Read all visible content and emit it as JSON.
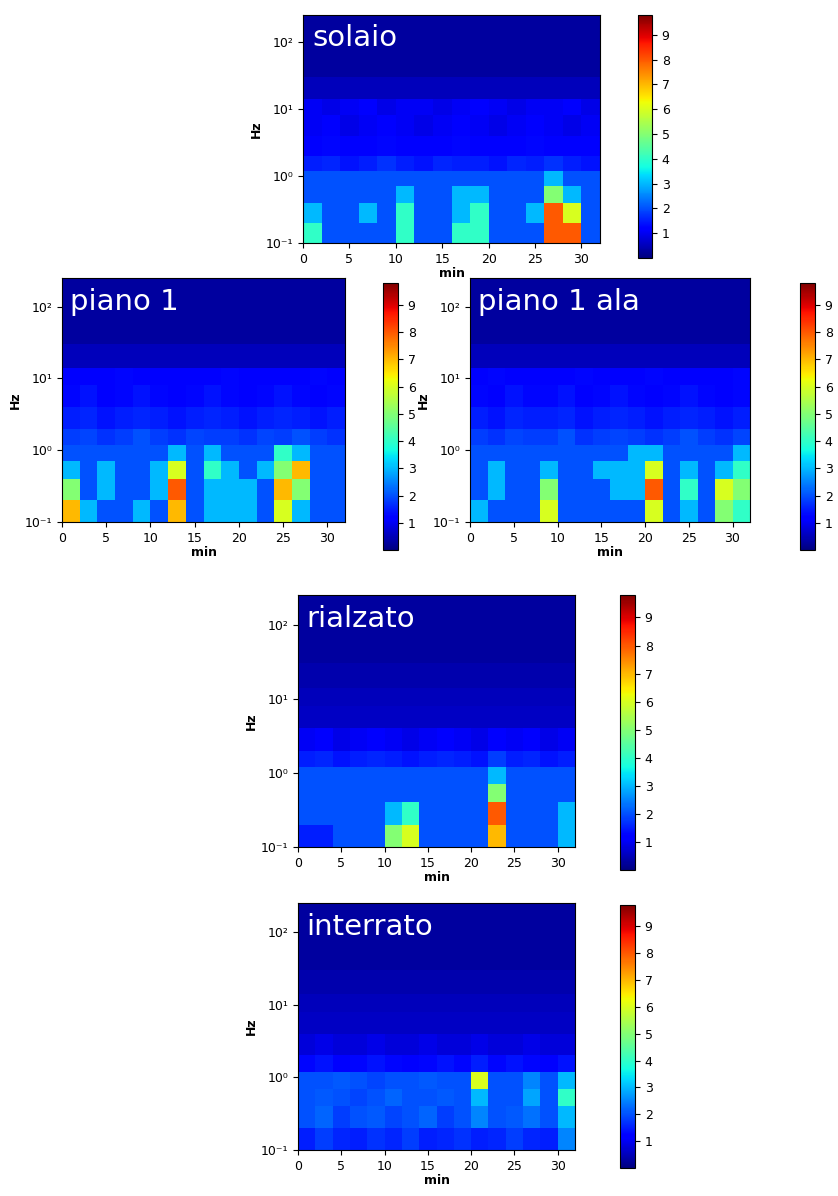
{
  "chart_data": [
    {
      "type": "heatmap",
      "title": "solaio",
      "x_label": "min",
      "y_label": "Hz",
      "log": "y",
      "xlim": [
        0,
        32
      ],
      "ylim": [
        0.1,
        250
      ],
      "xticks": [
        0,
        5,
        10,
        15,
        20,
        25,
        30
      ],
      "yticks": [
        {
          "value": 0.1,
          "label": "10⁻¹"
        },
        {
          "value": 1,
          "label": "10⁰"
        },
        {
          "value": 10,
          "label": "10¹"
        },
        {
          "value": 100,
          "label": "10²"
        }
      ],
      "colorbar_range": [
        0,
        9.8
      ],
      "colorbar_ticks": [
        1,
        2,
        3,
        4,
        5,
        6,
        7,
        8,
        9
      ],
      "x_edges": [
        0,
        2,
        4,
        6,
        8,
        10,
        12,
        14,
        16,
        18,
        20,
        22,
        24,
        26,
        28,
        30,
        32
      ],
      "y_edges": [
        0.1,
        0.2,
        0.4,
        0.7,
        1.2,
        2,
        4,
        8,
        14,
        30,
        250
      ],
      "cells": [
        [
          4,
          2,
          2,
          2,
          2,
          4,
          2,
          2,
          4,
          4,
          2,
          2,
          2,
          8,
          8,
          2
        ],
        [
          3,
          2,
          2,
          3,
          2,
          4,
          2,
          2,
          3,
          4,
          2,
          2,
          3,
          8,
          6,
          2
        ],
        [
          2,
          2,
          2,
          2,
          2,
          3,
          2,
          2,
          3,
          3,
          2,
          2,
          2,
          5,
          3,
          2
        ],
        [
          2,
          2,
          2,
          2,
          2,
          2,
          2,
          2,
          2,
          2,
          2,
          2,
          2,
          3,
          2,
          2
        ],
        [
          1.5,
          1.6,
          1.4,
          1.5,
          1.7,
          1.5,
          1.4,
          1.6,
          1.5,
          1.5,
          1.4,
          1.6,
          1.5,
          1.7,
          1.5,
          1.4
        ],
        [
          1.2,
          1.3,
          1.1,
          1.2,
          1.3,
          1.2,
          1.1,
          1.2,
          1.3,
          1.2,
          1.1,
          1.2,
          1.3,
          1.2,
          1.1,
          1.2
        ],
        [
          1.0,
          1.1,
          0.9,
          1.0,
          1.1,
          1.0,
          0.9,
          1.0,
          1.1,
          1.0,
          0.9,
          1.0,
          1.1,
          1.0,
          0.9,
          1.0
        ],
        [
          1.0,
          0.9,
          1.0,
          1.1,
          0.9,
          1.0,
          1.0,
          0.9,
          1.0,
          1.1,
          1.0,
          0.9,
          1.0,
          1.0,
          1.1,
          0.9
        ],
        [
          0.5,
          0.5,
          0.5,
          0.5,
          0.5,
          0.5,
          0.5,
          0.5,
          0.5,
          0.5,
          0.5,
          0.5,
          0.5,
          0.5,
          0.5,
          0.5
        ],
        [
          0.3,
          0.3,
          0.3,
          0.3,
          0.3,
          0.3,
          0.3,
          0.3,
          0.3,
          0.3,
          0.3,
          0.3,
          0.3,
          0.3,
          0.3,
          0.3
        ]
      ]
    },
    {
      "type": "heatmap",
      "title": "piano 1",
      "x_label": "min",
      "y_label": "Hz",
      "log": "y",
      "xlim": [
        0,
        32
      ],
      "ylim": [
        0.1,
        250
      ],
      "xticks": [
        0,
        5,
        10,
        15,
        20,
        25,
        30
      ],
      "yticks": [
        {
          "value": 0.1,
          "label": "10⁻¹"
        },
        {
          "value": 1,
          "label": "10⁰"
        },
        {
          "value": 10,
          "label": "10¹"
        },
        {
          "value": 100,
          "label": "10²"
        }
      ],
      "colorbar_range": [
        0,
        9.8
      ],
      "colorbar_ticks": [
        1,
        2,
        3,
        4,
        5,
        6,
        7,
        8,
        9
      ],
      "x_edges": [
        0,
        2,
        4,
        6,
        8,
        10,
        12,
        14,
        16,
        18,
        20,
        22,
        24,
        26,
        28,
        30,
        32
      ],
      "y_edges": [
        0.1,
        0.2,
        0.4,
        0.7,
        1.2,
        2,
        4,
        8,
        14,
        30,
        250
      ],
      "cells": [
        [
          7,
          3,
          2,
          2,
          3,
          2,
          7,
          2,
          3,
          3,
          3,
          2,
          6,
          3,
          2,
          2
        ],
        [
          5,
          2,
          3,
          2,
          2,
          3,
          8,
          2,
          3,
          3,
          3,
          2,
          7,
          5,
          2,
          2
        ],
        [
          3,
          2,
          3,
          2,
          2,
          3,
          6,
          2,
          4,
          3,
          2,
          3,
          5,
          7,
          2,
          2
        ],
        [
          2,
          2,
          2,
          2,
          2,
          2,
          3,
          2,
          3,
          2,
          2,
          2,
          4,
          3,
          2,
          2
        ],
        [
          1.8,
          1.9,
          1.7,
          1.8,
          2.0,
          1.8,
          1.7,
          1.9,
          1.8,
          1.8,
          1.7,
          1.9,
          1.8,
          2.0,
          1.8,
          1.7
        ],
        [
          1.5,
          1.6,
          1.4,
          1.5,
          1.6,
          1.5,
          1.4,
          1.5,
          1.6,
          1.5,
          1.4,
          1.5,
          1.6,
          1.5,
          1.4,
          1.5
        ],
        [
          1.3,
          1.4,
          1.2,
          1.3,
          1.4,
          1.3,
          1.2,
          1.3,
          1.4,
          1.3,
          1.2,
          1.3,
          1.4,
          1.3,
          1.2,
          1.3
        ],
        [
          1.2,
          1.1,
          1.2,
          1.3,
          1.1,
          1.2,
          1.2,
          1.1,
          1.2,
          1.3,
          1.2,
          1.1,
          1.2,
          1.2,
          1.3,
          1.1
        ],
        [
          0.5,
          0.5,
          0.5,
          0.5,
          0.5,
          0.5,
          0.5,
          0.5,
          0.5,
          0.5,
          0.5,
          0.5,
          0.5,
          0.5,
          0.5,
          0.5
        ],
        [
          0.3,
          0.3,
          0.3,
          0.3,
          0.3,
          0.3,
          0.3,
          0.3,
          0.3,
          0.3,
          0.3,
          0.3,
          0.3,
          0.3,
          0.3,
          0.3
        ]
      ]
    },
    {
      "type": "heatmap",
      "title": "piano 1 ala",
      "x_label": "min",
      "y_label": "Hz",
      "log": "y",
      "xlim": [
        0,
        32
      ],
      "ylim": [
        0.1,
        250
      ],
      "xticks": [
        0,
        5,
        10,
        15,
        20,
        25,
        30
      ],
      "yticks": [
        {
          "value": 0.1,
          "label": "10⁻¹"
        },
        {
          "value": 1,
          "label": "10⁰"
        },
        {
          "value": 10,
          "label": "10¹"
        },
        {
          "value": 100,
          "label": "10²"
        }
      ],
      "colorbar_range": [
        0,
        9.8
      ],
      "colorbar_ticks": [
        1,
        2,
        3,
        4,
        5,
        6,
        7,
        8,
        9
      ],
      "x_edges": [
        0,
        2,
        4,
        6,
        8,
        10,
        12,
        14,
        16,
        18,
        20,
        22,
        24,
        26,
        28,
        30,
        32
      ],
      "y_edges": [
        0.1,
        0.2,
        0.4,
        0.7,
        1.2,
        2,
        4,
        8,
        14,
        30,
        250
      ],
      "cells": [
        [
          3,
          2,
          2,
          2,
          6,
          2,
          2,
          2,
          2,
          2,
          6,
          2,
          3,
          2,
          5,
          4
        ],
        [
          2,
          3,
          2,
          2,
          5,
          2,
          2,
          2,
          3,
          3,
          8,
          2,
          4,
          2,
          6,
          5
        ],
        [
          2,
          3,
          2,
          2,
          3,
          2,
          2,
          3,
          3,
          3,
          6,
          2,
          3,
          2,
          3,
          4
        ],
        [
          2,
          2,
          2,
          2,
          2,
          2,
          2,
          2,
          2,
          3,
          3,
          2,
          2,
          2,
          2,
          3
        ],
        [
          1.8,
          1.7,
          1.9,
          1.8,
          1.8,
          2.0,
          1.7,
          1.8,
          1.9,
          1.8,
          1.7,
          1.8,
          2.0,
          1.8,
          1.7,
          1.9
        ],
        [
          1.5,
          1.4,
          1.6,
          1.5,
          1.5,
          1.6,
          1.4,
          1.5,
          1.6,
          1.5,
          1.4,
          1.5,
          1.6,
          1.5,
          1.4,
          1.5
        ],
        [
          1.3,
          1.2,
          1.4,
          1.3,
          1.3,
          1.4,
          1.2,
          1.3,
          1.4,
          1.3,
          1.2,
          1.3,
          1.4,
          1.3,
          1.2,
          1.3
        ],
        [
          1.2,
          1.3,
          1.1,
          1.2,
          1.2,
          1.1,
          1.3,
          1.2,
          1.1,
          1.2,
          1.3,
          1.2,
          1.1,
          1.2,
          1.2,
          1.3
        ],
        [
          0.5,
          0.5,
          0.5,
          0.5,
          0.5,
          0.5,
          0.5,
          0.5,
          0.5,
          0.5,
          0.5,
          0.5,
          0.5,
          0.5,
          0.5,
          0.5
        ],
        [
          0.3,
          0.3,
          0.3,
          0.3,
          0.3,
          0.3,
          0.3,
          0.3,
          0.3,
          0.3,
          0.3,
          0.3,
          0.3,
          0.3,
          0.3,
          0.3
        ]
      ]
    },
    {
      "type": "heatmap",
      "title": "rialzato",
      "x_label": "min",
      "y_label": "Hz",
      "log": "y",
      "xlim": [
        0,
        32
      ],
      "ylim": [
        0.1,
        250
      ],
      "xticks": [
        0,
        5,
        10,
        15,
        20,
        25,
        30
      ],
      "yticks": [
        {
          "value": 0.1,
          "label": "10⁻¹"
        },
        {
          "value": 1,
          "label": "10⁰"
        },
        {
          "value": 10,
          "label": "10¹"
        },
        {
          "value": 100,
          "label": "10²"
        }
      ],
      "colorbar_range": [
        0,
        9.8
      ],
      "colorbar_ticks": [
        1,
        2,
        3,
        4,
        5,
        6,
        7,
        8,
        9
      ],
      "x_edges": [
        0,
        2,
        4,
        6,
        8,
        10,
        12,
        14,
        16,
        18,
        20,
        22,
        24,
        26,
        28,
        30,
        32
      ],
      "y_edges": [
        0.1,
        0.2,
        0.4,
        0.7,
        1.2,
        2,
        4,
        8,
        14,
        30,
        250
      ],
      "cells": [
        [
          1.5,
          1.5,
          2,
          2,
          2,
          5,
          6,
          2,
          2,
          2,
          2,
          7,
          2,
          2,
          2,
          3
        ],
        [
          2,
          2,
          2,
          2,
          2,
          3,
          4,
          2,
          2,
          2,
          2,
          8,
          2,
          2,
          2,
          3
        ],
        [
          2,
          2,
          2,
          2,
          2,
          2,
          2,
          2,
          2,
          2,
          2,
          5,
          2,
          2,
          2,
          2
        ],
        [
          2,
          2,
          2,
          2,
          2,
          2,
          2,
          2,
          2,
          2,
          2,
          3,
          2,
          2,
          2,
          2
        ],
        [
          1.5,
          1.6,
          1.4,
          1.5,
          1.6,
          1.5,
          1.4,
          1.5,
          1.6,
          1.5,
          1.4,
          1.8,
          1.5,
          1.6,
          1.4,
          1.5
        ],
        [
          1.0,
          1.1,
          0.9,
          1.0,
          1.1,
          1.0,
          0.9,
          1.0,
          1.1,
          1.0,
          0.9,
          1.2,
          1.0,
          1.1,
          0.9,
          1.0
        ],
        [
          0.6,
          0.6,
          0.6,
          0.6,
          0.6,
          0.6,
          0.6,
          0.6,
          0.6,
          0.6,
          0.6,
          0.6,
          0.6,
          0.6,
          0.6,
          0.6
        ],
        [
          0.5,
          0.5,
          0.5,
          0.5,
          0.5,
          0.5,
          0.5,
          0.5,
          0.5,
          0.5,
          0.5,
          0.5,
          0.5,
          0.5,
          0.5,
          0.5
        ],
        [
          0.4,
          0.4,
          0.4,
          0.4,
          0.4,
          0.4,
          0.4,
          0.4,
          0.4,
          0.4,
          0.4,
          0.4,
          0.4,
          0.4,
          0.4,
          0.4
        ],
        [
          0.3,
          0.3,
          0.3,
          0.3,
          0.3,
          0.3,
          0.3,
          0.3,
          0.3,
          0.3,
          0.3,
          0.3,
          0.3,
          0.3,
          0.3,
          0.3
        ]
      ]
    },
    {
      "type": "heatmap",
      "title": "interrato",
      "x_label": "min",
      "y_label": "Hz",
      "log": "y",
      "xlim": [
        0,
        32
      ],
      "ylim": [
        0.1,
        250
      ],
      "xticks": [
        0,
        5,
        10,
        15,
        20,
        25,
        30
      ],
      "yticks": [
        {
          "value": 0.1,
          "label": "10⁻¹"
        },
        {
          "value": 1,
          "label": "10⁰"
        },
        {
          "value": 10,
          "label": "10¹"
        },
        {
          "value": 100,
          "label": "10²"
        }
      ],
      "colorbar_range": [
        0,
        9.8
      ],
      "colorbar_ticks": [
        1,
        2,
        3,
        4,
        5,
        6,
        7,
        8,
        9
      ],
      "x_edges": [
        0,
        2,
        4,
        6,
        8,
        10,
        12,
        14,
        16,
        18,
        20,
        22,
        24,
        26,
        28,
        30,
        32
      ],
      "y_edges": [
        0.1,
        0.2,
        0.4,
        0.7,
        1.2,
        2,
        4,
        8,
        14,
        30,
        250
      ],
      "cells": [
        [
          1.5,
          1.8,
          1.6,
          1.5,
          1.7,
          1.6,
          1.8,
          1.5,
          1.6,
          1.7,
          1.5,
          1.6,
          1.8,
          1.6,
          1.5,
          2.5
        ],
        [
          2,
          2.2,
          1.8,
          2,
          2.1,
          1.9,
          2,
          2.2,
          1.8,
          2,
          2.5,
          2,
          2.1,
          2.3,
          2,
          3
        ],
        [
          2,
          2.1,
          2,
          1.9,
          2,
          2.2,
          2,
          2,
          2.1,
          2,
          3,
          2,
          2,
          2.8,
          2,
          4
        ],
        [
          2,
          2,
          2.1,
          2,
          1.9,
          2,
          2,
          2.1,
          2,
          2,
          6,
          2,
          2,
          2.5,
          2,
          3
        ],
        [
          1.3,
          1.4,
          1.2,
          1.3,
          1.4,
          1.3,
          1.2,
          1.3,
          1.4,
          1.3,
          1.5,
          1.3,
          1.4,
          1.3,
          1.2,
          1.4
        ],
        [
          0.8,
          0.9,
          0.8,
          0.8,
          0.9,
          0.8,
          0.8,
          0.9,
          0.8,
          0.8,
          0.9,
          0.8,
          0.8,
          0.9,
          0.8,
          0.8
        ],
        [
          0.6,
          0.6,
          0.6,
          0.6,
          0.6,
          0.6,
          0.6,
          0.6,
          0.6,
          0.6,
          0.6,
          0.6,
          0.6,
          0.6,
          0.6,
          0.6
        ],
        [
          0.5,
          0.5,
          0.5,
          0.5,
          0.5,
          0.5,
          0.5,
          0.5,
          0.5,
          0.5,
          0.5,
          0.5,
          0.5,
          0.5,
          0.5,
          0.5
        ],
        [
          0.4,
          0.4,
          0.4,
          0.4,
          0.4,
          0.4,
          0.4,
          0.4,
          0.4,
          0.4,
          0.4,
          0.4,
          0.4,
          0.4,
          0.4,
          0.4
        ],
        [
          0.3,
          0.3,
          0.3,
          0.3,
          0.3,
          0.3,
          0.3,
          0.3,
          0.3,
          0.3,
          0.3,
          0.3,
          0.3,
          0.3,
          0.3,
          0.3
        ]
      ]
    }
  ]
}
